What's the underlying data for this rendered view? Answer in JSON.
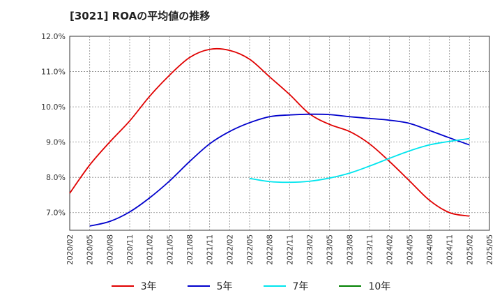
{
  "chart_data": {
    "type": "line",
    "title": "[3021]  ROAの平均値の推移",
    "xlabel": "",
    "ylabel": "",
    "ylim": [
      6.5,
      12.0
    ],
    "yticks": [
      "7.0%",
      "8.0%",
      "9.0%",
      "10.0%",
      "11.0%",
      "12.0%"
    ],
    "ytick_values": [
      7.0,
      8.0,
      9.0,
      10.0,
      11.0,
      12.0
    ],
    "x_categories": [
      "2020/02",
      "2020/05",
      "2020/08",
      "2020/11",
      "2021/02",
      "2021/05",
      "2021/08",
      "2021/11",
      "2022/02",
      "2022/05",
      "2022/08",
      "2022/11",
      "2023/02",
      "2023/05",
      "2023/08",
      "2023/11",
      "2024/02",
      "2024/05",
      "2024/08",
      "2024/11",
      "2025/02",
      "2025/05"
    ],
    "grid": true,
    "legend_position": "bottom",
    "series": [
      {
        "name": "3年",
        "color": "#e00000",
        "values": [
          7.55,
          8.35,
          9.0,
          9.6,
          10.3,
          10.9,
          11.4,
          11.63,
          11.6,
          11.35,
          10.85,
          10.35,
          9.8,
          9.5,
          9.3,
          8.95,
          8.45,
          7.9,
          7.35,
          7.0,
          6.9,
          null
        ]
      },
      {
        "name": "5年",
        "color": "#0000cc",
        "values": [
          null,
          6.62,
          6.75,
          7.02,
          7.42,
          7.9,
          8.45,
          8.95,
          9.3,
          9.55,
          9.72,
          9.77,
          9.79,
          9.78,
          9.72,
          9.67,
          9.62,
          9.53,
          9.33,
          9.12,
          8.92,
          null
        ]
      },
      {
        "name": "7年",
        "color": "#00e5ee",
        "values": [
          null,
          null,
          null,
          null,
          null,
          null,
          null,
          null,
          null,
          7.97,
          7.88,
          7.86,
          7.89,
          7.98,
          8.12,
          8.32,
          8.54,
          8.75,
          8.92,
          9.02,
          9.1,
          null
        ]
      },
      {
        "name": "10年",
        "color": "#008000",
        "values": []
      }
    ]
  }
}
